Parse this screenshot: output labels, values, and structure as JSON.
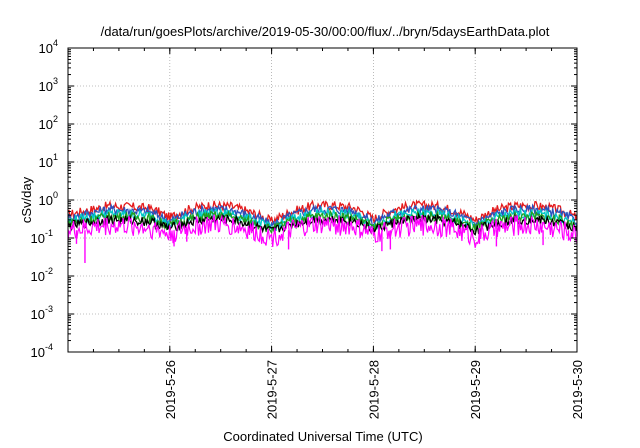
{
  "chart_data": {
    "type": "line",
    "title": "/data/run/goesPlots/archive/2019-05-30/00:00/flux/../bryn/5daysEarthData.plot",
    "xlabel": "Coordinated Universal Time (UTC)",
    "ylabel": "cSv/day",
    "yscale": "log",
    "ylim": [
      0.0001,
      10000
    ],
    "y_ticks": [
      {
        "value": 0.0001,
        "base": "10",
        "exp": "-4"
      },
      {
        "value": 0.001,
        "base": "10",
        "exp": "-3"
      },
      {
        "value": 0.01,
        "base": "10",
        "exp": "-2"
      },
      {
        "value": 0.1,
        "base": "10",
        "exp": "-1"
      },
      {
        "value": 1,
        "base": "10",
        "exp": "0"
      },
      {
        "value": 10,
        "base": "10",
        "exp": "1"
      },
      {
        "value": 100,
        "base": "10",
        "exp": "2"
      },
      {
        "value": 1000,
        "base": "10",
        "exp": "3"
      },
      {
        "value": 10000,
        "base": "10",
        "exp": "4"
      }
    ],
    "xlim": [
      "2019-05-25T00:00",
      "2019-05-30T00:00"
    ],
    "x_ticks": [
      "2019-5-26",
      "2019-5-27",
      "2019-5-28",
      "2019-5-29",
      "2019-5-30"
    ],
    "grid": true,
    "series": [
      {
        "color": "#e41a1c",
        "values": [
          0.42,
          0.55,
          0.72,
          0.68,
          0.62,
          0.35,
          0.6,
          0.75,
          0.7,
          0.48,
          0.28,
          0.5,
          0.72,
          0.75,
          0.65,
          0.32,
          0.58,
          0.74,
          0.72,
          0.55,
          0.3,
          0.55,
          0.73,
          0.72,
          0.58,
          0.35
        ]
      },
      {
        "color": "#2a52be",
        "values": [
          0.34,
          0.45,
          0.58,
          0.55,
          0.5,
          0.28,
          0.48,
          0.6,
          0.56,
          0.39,
          0.22,
          0.4,
          0.58,
          0.6,
          0.52,
          0.26,
          0.47,
          0.59,
          0.58,
          0.44,
          0.24,
          0.44,
          0.58,
          0.58,
          0.47,
          0.28
        ]
      },
      {
        "color": "#00c8c8",
        "values": [
          0.28,
          0.36,
          0.45,
          0.43,
          0.4,
          0.23,
          0.38,
          0.47,
          0.44,
          0.31,
          0.18,
          0.32,
          0.45,
          0.47,
          0.41,
          0.21,
          0.37,
          0.46,
          0.45,
          0.35,
          0.2,
          0.35,
          0.45,
          0.45,
          0.37,
          0.23
        ]
      },
      {
        "color": "#1fa01f",
        "values": [
          0.25,
          0.31,
          0.38,
          0.37,
          0.34,
          0.21,
          0.33,
          0.4,
          0.38,
          0.27,
          0.17,
          0.28,
          0.38,
          0.4,
          0.35,
          0.19,
          0.32,
          0.39,
          0.38,
          0.3,
          0.18,
          0.3,
          0.38,
          0.38,
          0.32,
          0.21
        ]
      },
      {
        "color": "#000000",
        "values": [
          0.21,
          0.26,
          0.31,
          0.3,
          0.28,
          0.18,
          0.27,
          0.32,
          0.31,
          0.22,
          0.15,
          0.23,
          0.31,
          0.32,
          0.29,
          0.16,
          0.26,
          0.32,
          0.31,
          0.25,
          0.16,
          0.25,
          0.31,
          0.31,
          0.26,
          0.18
        ]
      },
      {
        "color": "#ff00ff",
        "values": [
          0.16,
          0.19,
          0.23,
          0.22,
          0.2,
          0.13,
          0.2,
          0.24,
          0.23,
          0.16,
          0.11,
          0.17,
          0.23,
          0.24,
          0.21,
          0.12,
          0.19,
          0.23,
          0.23,
          0.18,
          0.11,
          0.18,
          0.23,
          0.23,
          0.19,
          0.13
        ]
      }
    ],
    "dips": [
      {
        "x": "2019-05-25T04:00",
        "value": 0.022
      },
      {
        "x": "2019-05-25T02:00",
        "value": 0.07
      },
      {
        "x": "2019-05-26T01:00",
        "value": 0.06
      },
      {
        "x": "2019-05-26T04:00",
        "value": 0.08
      },
      {
        "x": "2019-05-27T04:00",
        "value": 0.05
      },
      {
        "x": "2019-05-28T02:00",
        "value": 0.045
      },
      {
        "x": "2019-05-28T04:00",
        "value": 0.05
      },
      {
        "x": "2019-05-29T01:00",
        "value": 0.07
      },
      {
        "x": "2019-05-29T05:00",
        "value": 0.06
      },
      {
        "x": "2019-05-29T16:00",
        "value": 0.065
      },
      {
        "x": "2019-05-29T22:00",
        "value": 0.085
      },
      {
        "x": "2019-05-30T00:00",
        "value": 0.11
      }
    ]
  }
}
